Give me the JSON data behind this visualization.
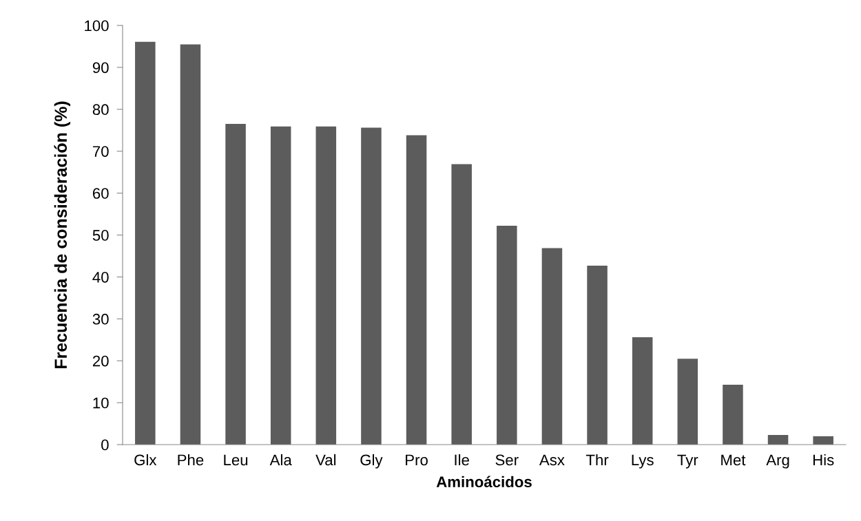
{
  "chart_data": {
    "type": "bar",
    "xlabel": "Aminoácidos",
    "ylabel": "Frecuencia de consideración (%)",
    "categories": [
      "Glx",
      "Phe",
      "Leu",
      "Ala",
      "Val",
      "Gly",
      "Pro",
      "Ile",
      "Ser",
      "Asx",
      "Thr",
      "Lys",
      "Tyr",
      "Met",
      "Arg",
      "His"
    ],
    "values": [
      96.1,
      95.5,
      76.5,
      75.9,
      75.9,
      75.6,
      73.8,
      66.9,
      52.2,
      46.9,
      42.7,
      25.6,
      20.5,
      14.3,
      2.3,
      2.0
    ],
    "color": "#5c5c5c",
    "ylim": [
      0,
      100
    ],
    "yticks": [
      0,
      10,
      20,
      30,
      40,
      50,
      60,
      70,
      80,
      90,
      100
    ],
    "grid": false,
    "legend": false
  }
}
